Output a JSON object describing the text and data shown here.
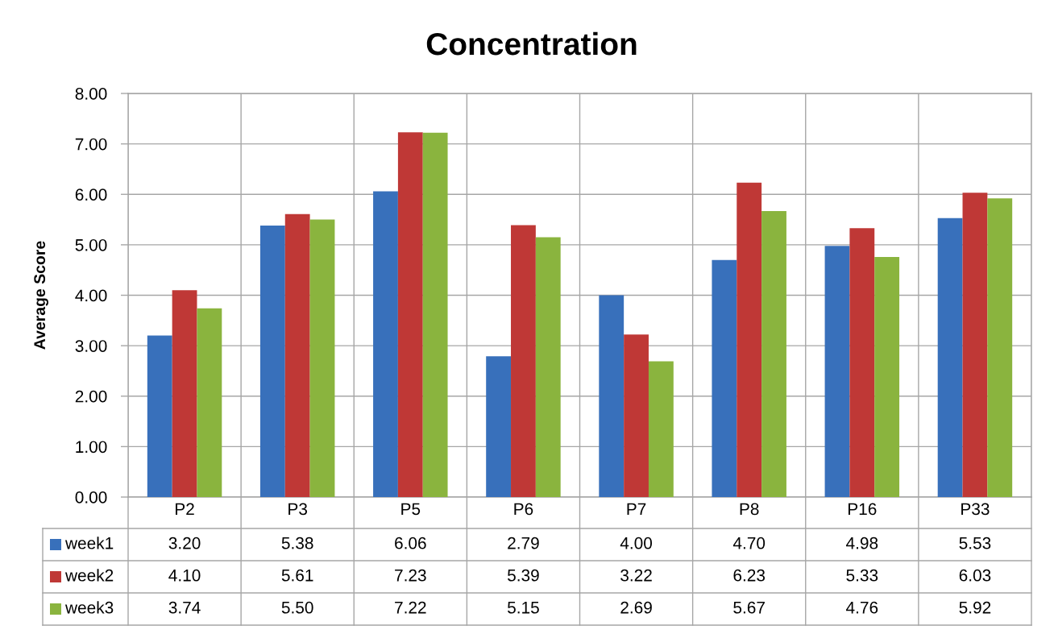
{
  "chart_data": {
    "type": "bar",
    "title": "Concentration",
    "ylabel": "Average Score",
    "categories": [
      "P2",
      "P3",
      "P5",
      "P6",
      "P7",
      "P8",
      "P16",
      "P33"
    ],
    "series": [
      {
        "name": "week1",
        "color": "#3870bb",
        "values": [
          3.2,
          5.38,
          6.06,
          2.79,
          4.0,
          4.7,
          4.98,
          5.53
        ],
        "value_labels": [
          "3.20",
          "5.38",
          "6.06",
          "2.79",
          "4.00",
          "4.70",
          "4.98",
          "5.53"
        ]
      },
      {
        "name": "week2",
        "color": "#bf3836",
        "values": [
          4.1,
          5.61,
          7.23,
          5.39,
          3.22,
          6.23,
          5.33,
          6.03
        ],
        "value_labels": [
          "4.10",
          "5.61",
          "7.23",
          "5.39",
          "3.22",
          "6.23",
          "5.33",
          "6.03"
        ]
      },
      {
        "name": "week3",
        "color": "#8ab43e",
        "values": [
          3.74,
          5.5,
          7.22,
          5.15,
          2.69,
          5.67,
          4.76,
          5.92
        ],
        "value_labels": [
          "3.74",
          "5.50",
          "7.22",
          "5.15",
          "2.69",
          "5.67",
          "4.76",
          "5.92"
        ]
      }
    ],
    "ylim": [
      0,
      8
    ],
    "yticks": [
      {
        "value": 0,
        "label": "0.00"
      },
      {
        "value": 1,
        "label": "1.00"
      },
      {
        "value": 2,
        "label": "2.00"
      },
      {
        "value": 3,
        "label": "3.00"
      },
      {
        "value": 4,
        "label": "4.00"
      },
      {
        "value": 5,
        "label": "5.00"
      },
      {
        "value": 6,
        "label": "6.00"
      },
      {
        "value": 7,
        "label": "7.00"
      },
      {
        "value": 8,
        "label": "8.00"
      }
    ],
    "grid": true,
    "legend": "bottom"
  }
}
